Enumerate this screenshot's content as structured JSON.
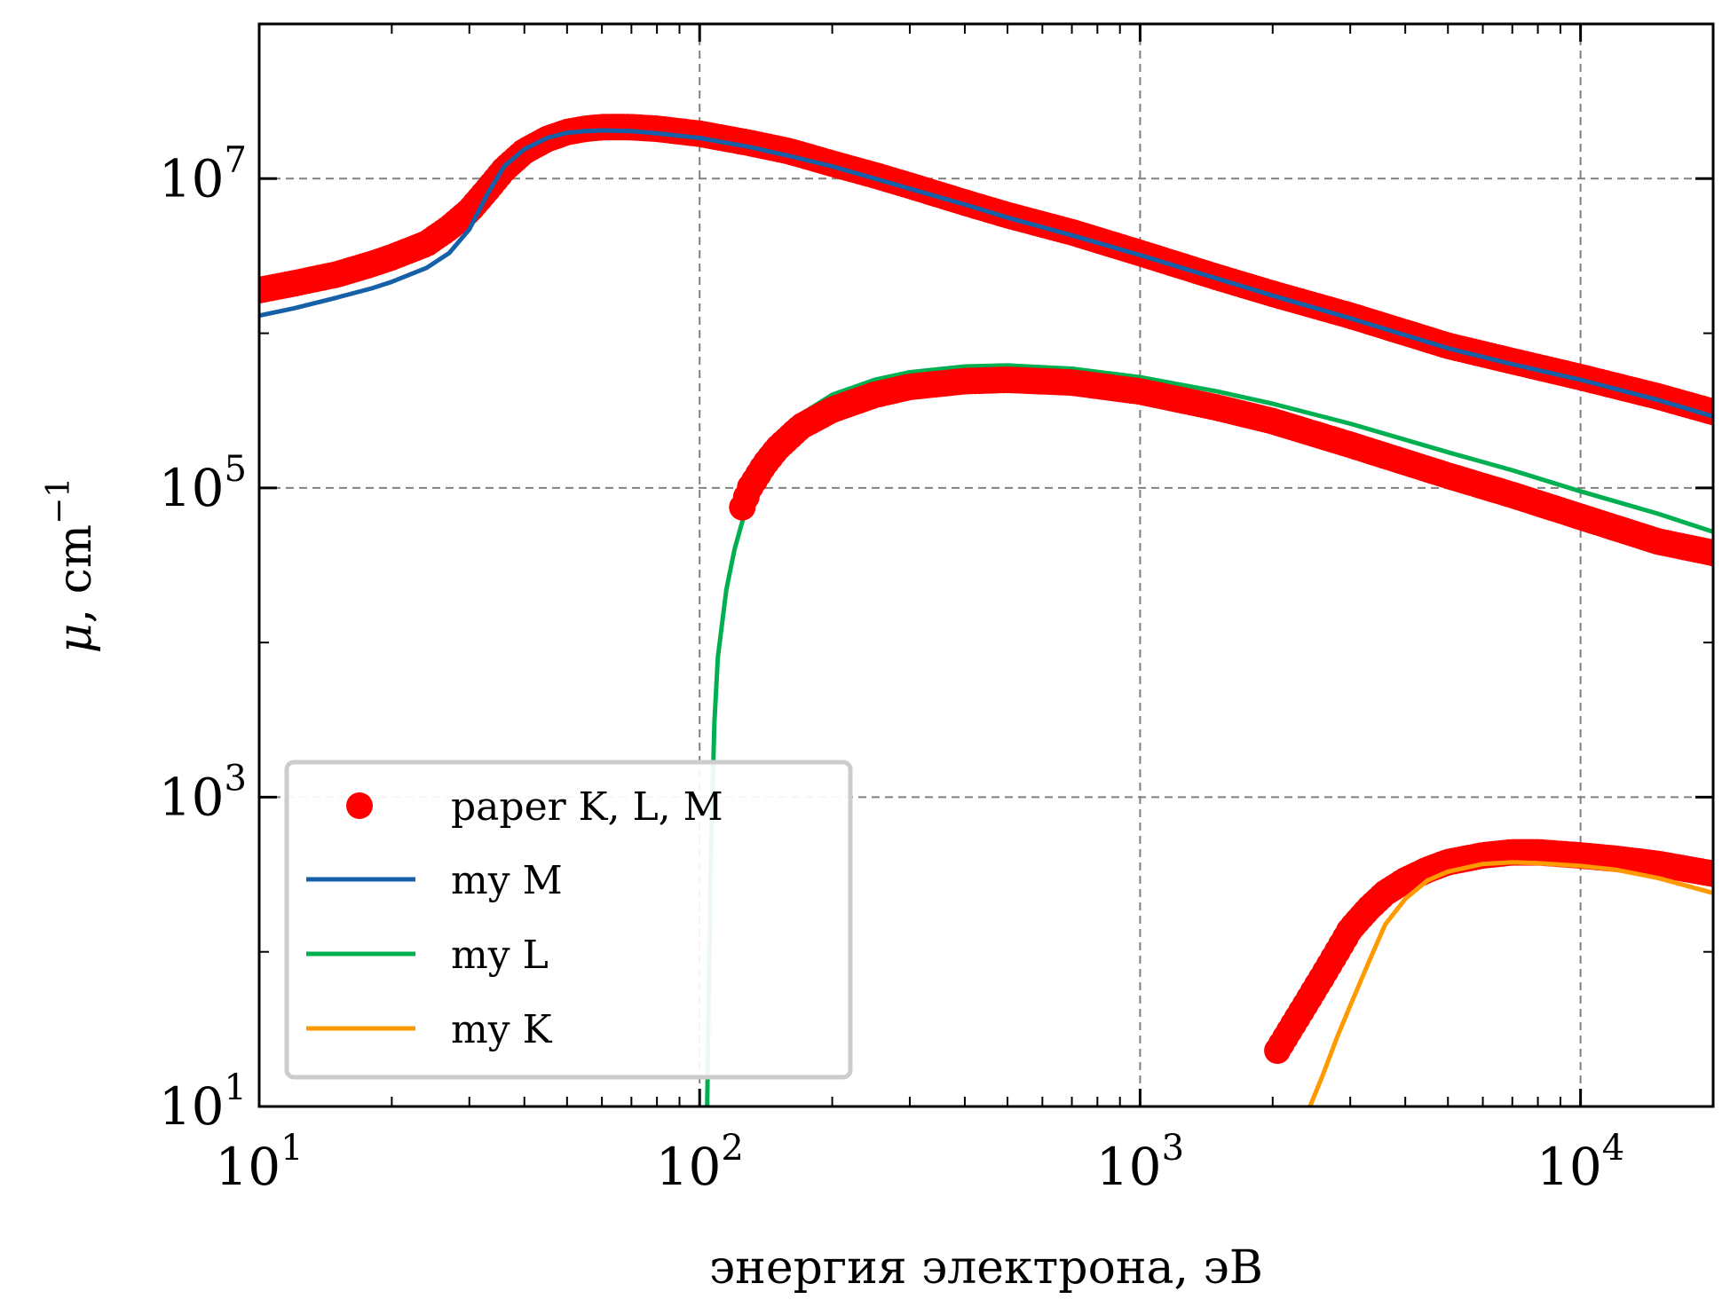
{
  "chart_data": {
    "type": "line",
    "xlabel": "энергия электрона, эВ",
    "ylabel": {
      "symbol": "μ",
      "rest": ", cm",
      "exp": "−1"
    },
    "x_scale": "log",
    "y_scale": "log",
    "xlim": [
      10,
      20000
    ],
    "ylim": [
      10,
      100000000
    ],
    "x_ticks": [
      {
        "value": 10,
        "base": "10",
        "exp": "1"
      },
      {
        "value": 100,
        "base": "10",
        "exp": "2"
      },
      {
        "value": 1000,
        "base": "10",
        "exp": "3"
      },
      {
        "value": 10000,
        "base": "10",
        "exp": "4"
      }
    ],
    "y_ticks": [
      {
        "value": 10,
        "base": "10",
        "exp": "1"
      },
      {
        "value": 1000,
        "base": "10",
        "exp": "3"
      },
      {
        "value": 100000,
        "base": "10",
        "exp": "5"
      },
      {
        "value": 10000000,
        "base": "10",
        "exp": "7"
      }
    ],
    "grid": true,
    "legend_position": "lower-left",
    "series": [
      {
        "name": "paper K, L, M",
        "style": "markers",
        "color": "#ff0000",
        "segments": [
          {
            "x": [
              10,
              12,
              15,
              18,
              20,
              24,
              27,
              30,
              33,
              36,
              40,
              45,
              50,
              55,
              60,
              70,
              80,
              100,
              130,
              160,
              200,
              250,
              300,
              400,
              500,
              700,
              1000,
              1500,
              2000,
              3000,
              5000,
              7000,
              10000,
              15000,
              20000
            ],
            "y": [
              1900000,
              2100000,
              2400000,
              2800000,
              3100000,
              3800000,
              4800000,
              6200000,
              8500000,
              11500000,
              15000000,
              18000000,
              20000000,
              21000000,
              21500000,
              21500000,
              21000000,
              19500000,
              17000000,
              15000000,
              12500000,
              10500000,
              9000000,
              7000000,
              5800000,
              4500000,
              3300000,
              2300000,
              1800000,
              1300000,
              830000,
              660000,
              520000,
              390000,
              310000
            ]
          },
          {
            "x": [
              125,
              130,
              140,
              150,
              170,
              200,
              250,
              300,
              400,
              500,
              700,
              1000,
              1500,
              2000,
              3000,
              5000,
              7000,
              10000,
              15000,
              20000
            ],
            "y": [
              75000,
              100000,
              140000,
              180000,
              250000,
              320000,
              400000,
              450000,
              490000,
              500000,
              480000,
              420000,
              330000,
              270000,
              190000,
              120000,
              90000,
              65000,
              45000,
              38000
            ]
          },
          {
            "x": [
              2050,
              2200,
              2400,
              2600,
              2800,
              3000,
              3300,
              3600,
              4000,
              4500,
              5000,
              6000,
              7000,
              8000,
              10000,
              12000,
              15000,
              20000
            ],
            "y": [
              23,
              32,
              48,
              70,
              100,
              140,
              190,
              240,
              290,
              340,
              380,
              420,
              440,
              440,
              420,
              400,
              370,
              320
            ]
          }
        ]
      },
      {
        "name": "my M",
        "style": "line",
        "color": "#1660a8",
        "x": [
          10,
          12,
          15,
          18,
          20,
          24,
          27,
          30,
          33,
          36,
          40,
          45,
          50,
          55,
          60,
          70,
          80,
          100,
          130,
          160,
          200,
          250,
          300,
          400,
          500,
          700,
          1000,
          1500,
          2000,
          3000,
          5000,
          7000,
          10000,
          15000,
          20000
        ],
        "y": [
          1300000,
          1450000,
          1700000,
          1950000,
          2150000,
          2650000,
          3300000,
          4700000,
          8000000,
          12000000,
          15500000,
          18300000,
          19800000,
          20300000,
          20500000,
          20300000,
          19600000,
          18300000,
          16000000,
          14000000,
          12000000,
          10000000,
          8600000,
          6800000,
          5600000,
          4300000,
          3200000,
          2250000,
          1750000,
          1250000,
          800000,
          630000,
          500000,
          370000,
          290000
        ]
      },
      {
        "name": "my L",
        "style": "line",
        "color": "#00b050",
        "x": [
          104,
          106,
          108,
          110,
          115,
          120,
          130,
          140,
          150,
          170,
          200,
          250,
          300,
          400,
          500,
          700,
          1000,
          1500,
          2000,
          3000,
          5000,
          7000,
          10000,
          15000,
          20000
        ],
        "y": [
          10,
          400,
          3000,
          8000,
          22000,
          40000,
          90000,
          150000,
          200000,
          300000,
          400000,
          500000,
          560000,
          610000,
          620000,
          590000,
          520000,
          420000,
          350000,
          260000,
          170000,
          130000,
          95000,
          68000,
          52000
        ]
      },
      {
        "name": "my K",
        "style": "line",
        "color": "#ff9900",
        "x": [
          2430,
          2600,
          2800,
          3000,
          3300,
          3600,
          4000,
          4500,
          5000,
          6000,
          7000,
          8000,
          10000,
          12000,
          15000,
          20000
        ],
        "y": [
          10,
          16,
          28,
          45,
          85,
          150,
          220,
          290,
          330,
          370,
          380,
          375,
          360,
          340,
          300,
          240
        ]
      }
    ]
  }
}
